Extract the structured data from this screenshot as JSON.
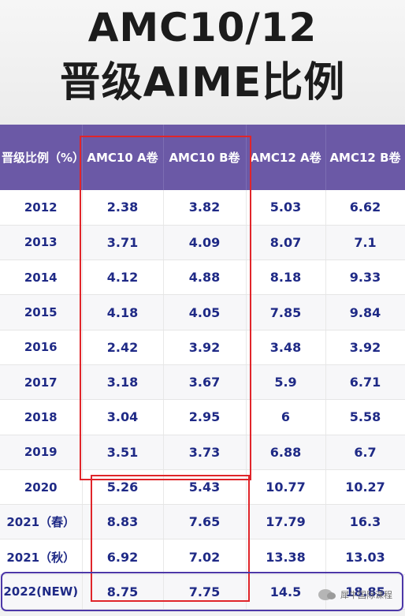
{
  "title": {
    "line1": "AMC10/12",
    "line2": "晋级AIME比例"
  },
  "table": {
    "headers": [
      "晋级比例（%）",
      "AMC10 A卷",
      "AMC10 B卷",
      "AMC12 A卷",
      "AMC12 B卷"
    ],
    "rows": [
      [
        "2012",
        "2.38",
        "3.82",
        "5.03",
        "6.62"
      ],
      [
        "2013",
        "3.71",
        "4.09",
        "8.07",
        "7.1"
      ],
      [
        "2014",
        "4.12",
        "4.88",
        "8.18",
        "9.33"
      ],
      [
        "2015",
        "4.18",
        "4.05",
        "7.85",
        "9.84"
      ],
      [
        "2016",
        "2.42",
        "3.92",
        "3.48",
        "3.92"
      ],
      [
        "2017",
        "3.18",
        "3.67",
        "5.9",
        "6.71"
      ],
      [
        "2018",
        "3.04",
        "2.95",
        "6",
        "5.58"
      ],
      [
        "2019",
        "3.51",
        "3.73",
        "6.88",
        "6.7"
      ],
      [
        "2020",
        "5.26",
        "5.43",
        "10.77",
        "10.27"
      ],
      [
        "2021（春）",
        "8.83",
        "7.65",
        "17.79",
        "16.3"
      ],
      [
        "2021（秋）",
        "6.92",
        "7.02",
        "13.38",
        "13.03"
      ],
      [
        "2022(NEW)",
        "8.75",
        "7.75",
        "14.5",
        "18.85"
      ]
    ]
  },
  "watermark": {
    "icon": "wechat-icon",
    "text": "犀牛国际课程"
  },
  "colors": {
    "header_bg": "#6b59a6",
    "value_text": "#1f2a86",
    "highlight_red": "#e0252a",
    "highlight_purple": "#4d38a8"
  }
}
